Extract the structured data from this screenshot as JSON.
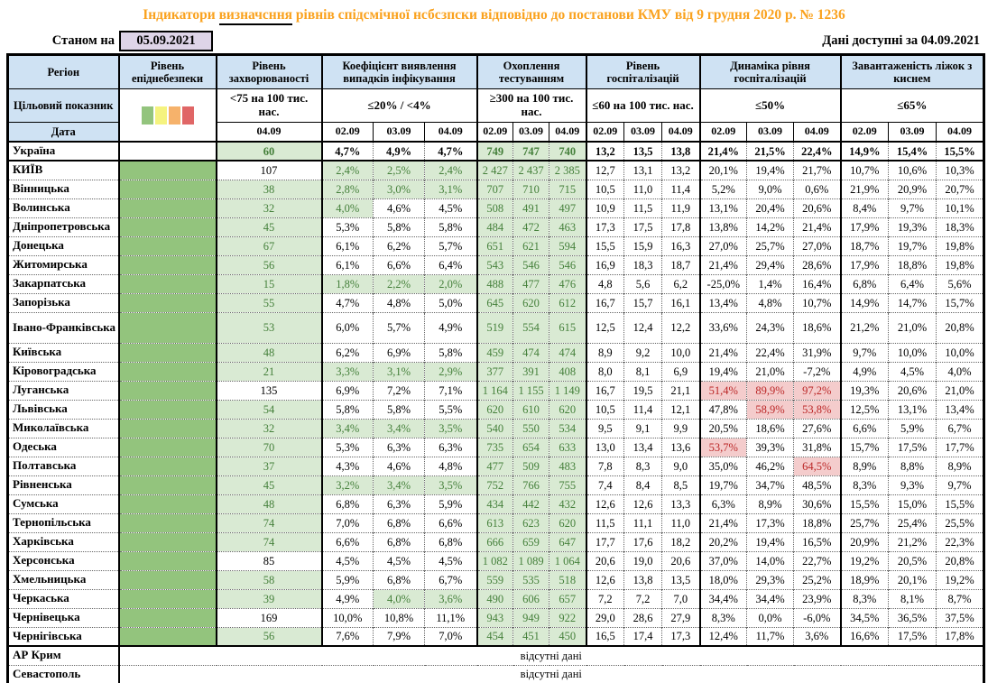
{
  "title": {
    "prefix": "Індикатори ",
    "underlined": "визначсння",
    "suffix": " рівнів спідсмічної нсбсзпски відповідно до постанови КМУ від 9 грудня 2020 р. № 1236"
  },
  "as_of": {
    "label": "Станом на",
    "date": "05.09.2021"
  },
  "available": {
    "label": "Дані доступні за",
    "date": "04.09.2021"
  },
  "colors": {
    "title": "#faa21e",
    "header_bg": "#cfe2f3",
    "as_of_bg": "#ded4e8",
    "danger_green": "#93c47d",
    "light_green_bg": "#d9ead3",
    "green_text": "#45803b",
    "red_bg": "#f4cccc",
    "red_text": "#bb2727",
    "legend": [
      "#93c47d",
      "#f5f37f",
      "#f6b26b",
      "#e06666"
    ]
  },
  "header": {
    "region": "Регіон",
    "target_label": "Цільовий показник",
    "date_label": "Дата",
    "legend_names": [
      "green",
      "yellow",
      "orange",
      "red"
    ],
    "groups": [
      {
        "label": "Рівень епіднебезпеки",
        "target": "",
        "dates": []
      },
      {
        "label": "Рівень захворюваності",
        "target": "<75 на 100 тис. нас.",
        "dates": [
          "04.09"
        ]
      },
      {
        "label": "Коефіцієнт виявлення випадків інфікування",
        "target": "≤20% / <4%",
        "dates": [
          "02.09",
          "03.09",
          "04.09"
        ]
      },
      {
        "label": "Охоплення тестуванням",
        "target": "≥300 на 100 тис. нас.",
        "dates": [
          "02.09",
          "03.09",
          "04.09"
        ]
      },
      {
        "label": "Рівень госпіталізацій",
        "target": "≤60 на 100 тис. нас.",
        "dates": [
          "02.09",
          "03.09",
          "04.09"
        ]
      },
      {
        "label": "Динаміка рівня госпіталізацій",
        "target": "≤50%",
        "dates": [
          "02.09",
          "03.09",
          "04.09"
        ]
      },
      {
        "label": "Завантаженість ліжок з киснем",
        "target": "≤65%",
        "dates": [
          "02.09",
          "03.09",
          "04.09"
        ]
      }
    ]
  },
  "rows": [
    {
      "name": "Україна",
      "ukr": true,
      "morb": "60",
      "morb_green": true,
      "coef": [
        "4,7%",
        "4,9%",
        "4,7%"
      ],
      "coef_green": [
        false,
        false,
        false
      ],
      "test": [
        "749",
        "747",
        "740"
      ],
      "hosp": [
        "13,2",
        "13,5",
        "13,8"
      ],
      "dyn": [
        "21,4%",
        "21,5%",
        "22,4%"
      ],
      "dyn_red": [
        false,
        false,
        false
      ],
      "beds": [
        "14,9%",
        "15,4%",
        "15,5%"
      ]
    },
    {
      "name": "КИЇВ",
      "morb": "107",
      "morb_green": false,
      "coef": [
        "2,4%",
        "2,5%",
        "2,4%"
      ],
      "coef_green": [
        true,
        true,
        true
      ],
      "test": [
        "2 427",
        "2 437",
        "2 385"
      ],
      "hosp": [
        "12,7",
        "13,1",
        "13,2"
      ],
      "dyn": [
        "20,1%",
        "19,4%",
        "21,7%"
      ],
      "dyn_red": [
        false,
        false,
        false
      ],
      "beds": [
        "10,7%",
        "10,6%",
        "10,3%"
      ]
    },
    {
      "name": "Вінницька",
      "morb": "38",
      "morb_green": true,
      "coef": [
        "2,8%",
        "3,0%",
        "3,1%"
      ],
      "coef_green": [
        true,
        true,
        true
      ],
      "test": [
        "707",
        "710",
        "715"
      ],
      "hosp": [
        "10,5",
        "11,0",
        "11,4"
      ],
      "dyn": [
        "5,2%",
        "9,0%",
        "0,6%"
      ],
      "dyn_red": [
        false,
        false,
        false
      ],
      "beds": [
        "21,9%",
        "20,9%",
        "20,7%"
      ]
    },
    {
      "name": "Волинська",
      "morb": "32",
      "morb_green": true,
      "coef": [
        "4,0%",
        "4,6%",
        "4,5%"
      ],
      "coef_green": [
        true,
        false,
        false
      ],
      "test": [
        "508",
        "491",
        "497"
      ],
      "hosp": [
        "10,9",
        "11,5",
        "11,9"
      ],
      "dyn": [
        "13,1%",
        "20,4%",
        "20,6%"
      ],
      "dyn_red": [
        false,
        false,
        false
      ],
      "beds": [
        "8,4%",
        "9,7%",
        "10,1%"
      ]
    },
    {
      "name": "Дніпропетровська",
      "morb": "45",
      "morb_green": true,
      "coef": [
        "5,3%",
        "5,8%",
        "5,8%"
      ],
      "coef_green": [
        false,
        false,
        false
      ],
      "test": [
        "484",
        "472",
        "463"
      ],
      "hosp": [
        "17,3",
        "17,5",
        "17,8"
      ],
      "dyn": [
        "13,8%",
        "14,2%",
        "21,4%"
      ],
      "dyn_red": [
        false,
        false,
        false
      ],
      "beds": [
        "17,9%",
        "19,3%",
        "18,3%"
      ]
    },
    {
      "name": "Донецька",
      "morb": "67",
      "morb_green": true,
      "coef": [
        "6,1%",
        "6,2%",
        "5,7%"
      ],
      "coef_green": [
        false,
        false,
        false
      ],
      "test": [
        "651",
        "621",
        "594"
      ],
      "hosp": [
        "15,5",
        "15,9",
        "16,3"
      ],
      "dyn": [
        "27,0%",
        "25,7%",
        "27,0%"
      ],
      "dyn_red": [
        false,
        false,
        false
      ],
      "beds": [
        "18,7%",
        "19,7%",
        "19,8%"
      ]
    },
    {
      "name": "Житомирська",
      "morb": "56",
      "morb_green": true,
      "coef": [
        "6,1%",
        "6,6%",
        "6,4%"
      ],
      "coef_green": [
        false,
        false,
        false
      ],
      "test": [
        "543",
        "546",
        "546"
      ],
      "hosp": [
        "16,9",
        "18,3",
        "18,7"
      ],
      "dyn": [
        "21,4%",
        "29,4%",
        "28,6%"
      ],
      "dyn_red": [
        false,
        false,
        false
      ],
      "beds": [
        "17,9%",
        "18,8%",
        "19,8%"
      ]
    },
    {
      "name": "Закарпатська",
      "morb": "15",
      "morb_green": true,
      "coef": [
        "1,8%",
        "2,2%",
        "2,0%"
      ],
      "coef_green": [
        true,
        true,
        true
      ],
      "test": [
        "488",
        "477",
        "476"
      ],
      "hosp": [
        "4,8",
        "5,6",
        "6,2"
      ],
      "dyn": [
        "-25,0%",
        "1,4%",
        "16,4%"
      ],
      "dyn_red": [
        false,
        false,
        false
      ],
      "beds": [
        "6,8%",
        "6,4%",
        "5,6%"
      ]
    },
    {
      "name": "Запорізька",
      "morb": "55",
      "morb_green": true,
      "coef": [
        "4,7%",
        "4,8%",
        "5,0%"
      ],
      "coef_green": [
        false,
        false,
        false
      ],
      "test": [
        "645",
        "620",
        "612"
      ],
      "hosp": [
        "16,7",
        "15,7",
        "16,1"
      ],
      "dyn": [
        "13,4%",
        "4,8%",
        "10,7%"
      ],
      "dyn_red": [
        false,
        false,
        false
      ],
      "beds": [
        "14,9%",
        "14,7%",
        "15,7%"
      ]
    },
    {
      "name": "Івано-Франківська",
      "tall": true,
      "morb": "53",
      "morb_green": true,
      "coef": [
        "6,0%",
        "5,7%",
        "4,9%"
      ],
      "coef_green": [
        false,
        false,
        false
      ],
      "test": [
        "519",
        "554",
        "615"
      ],
      "hosp": [
        "12,5",
        "12,4",
        "12,2"
      ],
      "dyn": [
        "33,6%",
        "24,3%",
        "18,6%"
      ],
      "dyn_red": [
        false,
        false,
        false
      ],
      "beds": [
        "21,2%",
        "21,0%",
        "20,8%"
      ]
    },
    {
      "name": "Київська",
      "morb": "48",
      "morb_green": true,
      "coef": [
        "6,2%",
        "6,9%",
        "5,8%"
      ],
      "coef_green": [
        false,
        false,
        false
      ],
      "test": [
        "459",
        "474",
        "474"
      ],
      "hosp": [
        "8,9",
        "9,2",
        "10,0"
      ],
      "dyn": [
        "21,4%",
        "22,4%",
        "31,9%"
      ],
      "dyn_red": [
        false,
        false,
        false
      ],
      "beds": [
        "9,7%",
        "10,0%",
        "10,0%"
      ]
    },
    {
      "name": "Кіровоградська",
      "morb": "21",
      "morb_green": true,
      "coef": [
        "3,3%",
        "3,1%",
        "2,9%"
      ],
      "coef_green": [
        true,
        true,
        true
      ],
      "test": [
        "377",
        "391",
        "408"
      ],
      "hosp": [
        "8,0",
        "8,1",
        "6,9"
      ],
      "dyn": [
        "19,4%",
        "21,0%",
        "-7,2%"
      ],
      "dyn_red": [
        false,
        false,
        false
      ],
      "beds": [
        "4,9%",
        "4,5%",
        "4,0%"
      ]
    },
    {
      "name": "Луганська",
      "morb": "135",
      "morb_green": false,
      "coef": [
        "6,9%",
        "7,2%",
        "7,1%"
      ],
      "coef_green": [
        false,
        false,
        false
      ],
      "test": [
        "1 164",
        "1 155",
        "1 149"
      ],
      "hosp": [
        "16,7",
        "19,5",
        "21,1"
      ],
      "dyn": [
        "51,4%",
        "89,9%",
        "97,2%"
      ],
      "dyn_red": [
        true,
        true,
        true
      ],
      "beds": [
        "19,3%",
        "20,6%",
        "21,0%"
      ]
    },
    {
      "name": "Львівська",
      "morb": "54",
      "morb_green": true,
      "coef": [
        "5,8%",
        "5,8%",
        "5,5%"
      ],
      "coef_green": [
        false,
        false,
        false
      ],
      "test": [
        "620",
        "610",
        "620"
      ],
      "hosp": [
        "10,5",
        "11,4",
        "12,1"
      ],
      "dyn": [
        "47,8%",
        "58,9%",
        "53,8%"
      ],
      "dyn_red": [
        false,
        true,
        true
      ],
      "beds": [
        "12,5%",
        "13,1%",
        "13,4%"
      ]
    },
    {
      "name": "Миколаївська",
      "morb": "32",
      "morb_green": true,
      "coef": [
        "3,4%",
        "3,4%",
        "3,5%"
      ],
      "coef_green": [
        true,
        true,
        true
      ],
      "test": [
        "540",
        "550",
        "534"
      ],
      "hosp": [
        "9,5",
        "9,1",
        "9,9"
      ],
      "dyn": [
        "20,5%",
        "18,6%",
        "27,6%"
      ],
      "dyn_red": [
        false,
        false,
        false
      ],
      "beds": [
        "6,6%",
        "5,9%",
        "6,7%"
      ]
    },
    {
      "name": "Одеська",
      "morb": "70",
      "morb_green": true,
      "coef": [
        "5,3%",
        "6,3%",
        "6,3%"
      ],
      "coef_green": [
        false,
        false,
        false
      ],
      "test": [
        "735",
        "654",
        "633"
      ],
      "hosp": [
        "13,0",
        "13,4",
        "13,6"
      ],
      "dyn": [
        "53,7%",
        "39,3%",
        "31,8%"
      ],
      "dyn_red": [
        true,
        false,
        false
      ],
      "beds": [
        "15,7%",
        "17,5%",
        "17,7%"
      ]
    },
    {
      "name": "Полтавська",
      "morb": "37",
      "morb_green": true,
      "coef": [
        "4,3%",
        "4,6%",
        "4,8%"
      ],
      "coef_green": [
        false,
        false,
        false
      ],
      "test": [
        "477",
        "509",
        "483"
      ],
      "hosp": [
        "7,8",
        "8,3",
        "9,0"
      ],
      "dyn": [
        "35,0%",
        "46,2%",
        "64,5%"
      ],
      "dyn_red": [
        false,
        false,
        true
      ],
      "beds": [
        "8,9%",
        "8,8%",
        "8,9%"
      ]
    },
    {
      "name": "Рівненська",
      "morb": "45",
      "morb_green": true,
      "coef": [
        "3,2%",
        "3,4%",
        "3,5%"
      ],
      "coef_green": [
        true,
        true,
        true
      ],
      "test": [
        "752",
        "766",
        "755"
      ],
      "hosp": [
        "7,4",
        "8,4",
        "8,5"
      ],
      "dyn": [
        "19,7%",
        "34,7%",
        "48,5%"
      ],
      "dyn_red": [
        false,
        false,
        false
      ],
      "beds": [
        "8,3%",
        "9,3%",
        "9,7%"
      ]
    },
    {
      "name": "Сумська",
      "morb": "48",
      "morb_green": true,
      "coef": [
        "6,8%",
        "6,3%",
        "5,9%"
      ],
      "coef_green": [
        false,
        false,
        false
      ],
      "test": [
        "434",
        "442",
        "432"
      ],
      "hosp": [
        "12,6",
        "12,6",
        "13,3"
      ],
      "dyn": [
        "6,3%",
        "8,9%",
        "30,6%"
      ],
      "dyn_red": [
        false,
        false,
        false
      ],
      "beds": [
        "15,5%",
        "15,0%",
        "15,5%"
      ]
    },
    {
      "name": "Тернопільська",
      "morb": "74",
      "morb_green": true,
      "coef": [
        "7,0%",
        "6,8%",
        "6,6%"
      ],
      "coef_green": [
        false,
        false,
        false
      ],
      "test": [
        "613",
        "623",
        "620"
      ],
      "hosp": [
        "11,5",
        "11,1",
        "11,0"
      ],
      "dyn": [
        "21,4%",
        "17,3%",
        "18,8%"
      ],
      "dyn_red": [
        false,
        false,
        false
      ],
      "beds": [
        "25,7%",
        "25,4%",
        "25,5%"
      ]
    },
    {
      "name": "Харківська",
      "morb": "74",
      "morb_green": true,
      "coef": [
        "6,6%",
        "6,8%",
        "6,8%"
      ],
      "coef_green": [
        false,
        false,
        false
      ],
      "test": [
        "666",
        "659",
        "647"
      ],
      "hosp": [
        "17,7",
        "17,6",
        "18,2"
      ],
      "dyn": [
        "20,2%",
        "19,4%",
        "16,5%"
      ],
      "dyn_red": [
        false,
        false,
        false
      ],
      "beds": [
        "20,9%",
        "21,2%",
        "22,3%"
      ]
    },
    {
      "name": "Херсонська",
      "morb": "85",
      "morb_green": false,
      "coef": [
        "4,5%",
        "4,5%",
        "4,5%"
      ],
      "coef_green": [
        false,
        false,
        false
      ],
      "test": [
        "1 082",
        "1 089",
        "1 064"
      ],
      "hosp": [
        "20,6",
        "19,0",
        "20,6"
      ],
      "dyn": [
        "37,0%",
        "14,0%",
        "22,7%"
      ],
      "dyn_red": [
        false,
        false,
        false
      ],
      "beds": [
        "19,2%",
        "20,5%",
        "20,8%"
      ]
    },
    {
      "name": "Хмельницька",
      "morb": "58",
      "morb_green": true,
      "coef": [
        "5,9%",
        "6,8%",
        "6,7%"
      ],
      "coef_green": [
        false,
        false,
        false
      ],
      "test": [
        "559",
        "535",
        "518"
      ],
      "hosp": [
        "12,6",
        "13,8",
        "13,5"
      ],
      "dyn": [
        "18,0%",
        "29,3%",
        "25,2%"
      ],
      "dyn_red": [
        false,
        false,
        false
      ],
      "beds": [
        "18,9%",
        "20,1%",
        "19,2%"
      ]
    },
    {
      "name": "Черкаська",
      "morb": "39",
      "morb_green": true,
      "coef": [
        "4,9%",
        "4,0%",
        "3,6%"
      ],
      "coef_green": [
        false,
        true,
        true
      ],
      "test": [
        "490",
        "606",
        "657"
      ],
      "hosp": [
        "7,2",
        "7,2",
        "7,0"
      ],
      "dyn": [
        "34,4%",
        "34,4%",
        "23,9%"
      ],
      "dyn_red": [
        false,
        false,
        false
      ],
      "beds": [
        "8,3%",
        "8,1%",
        "8,7%"
      ]
    },
    {
      "name": "Чернівецька",
      "morb": "169",
      "morb_green": false,
      "coef": [
        "10,0%",
        "10,8%",
        "11,1%"
      ],
      "coef_green": [
        false,
        false,
        false
      ],
      "test": [
        "943",
        "949",
        "922"
      ],
      "hosp": [
        "29,0",
        "28,6",
        "27,9"
      ],
      "dyn": [
        "8,3%",
        "0,0%",
        "-6,0%"
      ],
      "dyn_red": [
        false,
        false,
        false
      ],
      "beds": [
        "34,5%",
        "36,5%",
        "37,5%"
      ]
    },
    {
      "name": "Чернігівська",
      "morb": "56",
      "morb_green": true,
      "coef": [
        "7,6%",
        "7,9%",
        "7,0%"
      ],
      "coef_green": [
        false,
        false,
        false
      ],
      "test": [
        "454",
        "451",
        "450"
      ],
      "hosp": [
        "16,5",
        "17,4",
        "17,3"
      ],
      "dyn": [
        "12,4%",
        "11,7%",
        "3,6%"
      ],
      "dyn_red": [
        false,
        false,
        false
      ],
      "beds": [
        "16,6%",
        "17,5%",
        "17,8%"
      ]
    },
    {
      "name": "АР Крим",
      "crimea": true,
      "no_data": "відсутні дані"
    },
    {
      "name": "Севастополь",
      "no_data": "відсутні дані"
    }
  ]
}
